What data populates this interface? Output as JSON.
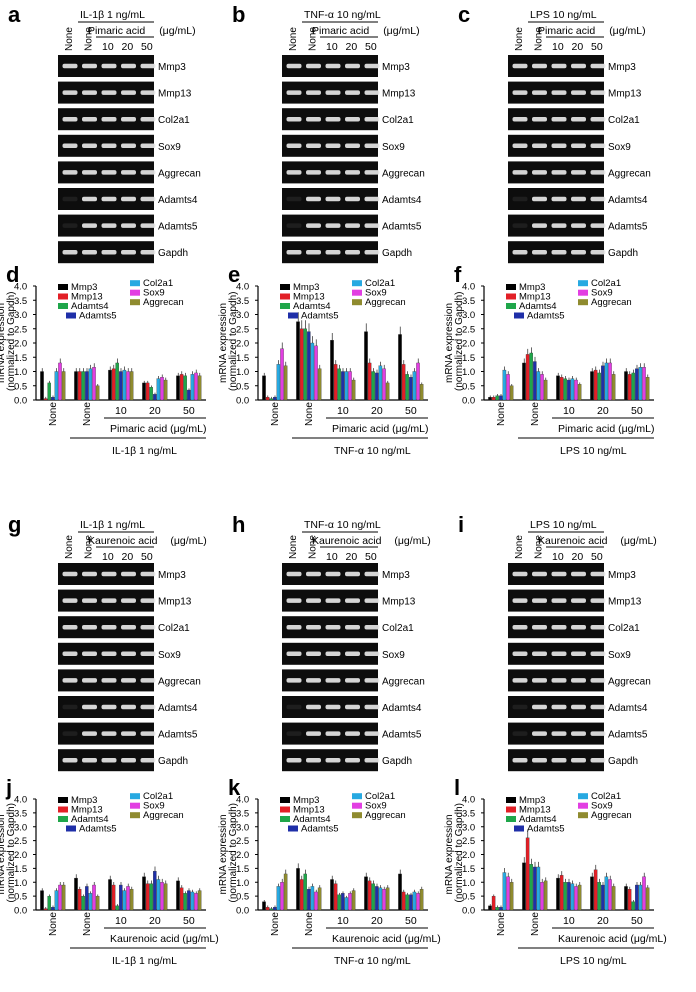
{
  "figure": {
    "gel_panels": [
      {
        "letter": "a",
        "treatment": "IL-1β 1 ng/mL",
        "compound": "Pimaric acid",
        "unit": "(μg/mL)",
        "none": "None",
        "doses": [
          "10",
          "20",
          "50"
        ]
      },
      {
        "letter": "b",
        "treatment": "TNF-α 10 ng/mL",
        "compound": "Pimaric acid",
        "unit": "(μg/mL)",
        "none": "None",
        "doses": [
          "10",
          "20",
          "50"
        ]
      },
      {
        "letter": "c",
        "treatment": "LPS 10 ng/mL",
        "compound": "Pimaric acid",
        "unit": "(μg/mL)",
        "none": "None",
        "doses": [
          "10",
          "20",
          "50"
        ]
      },
      {
        "letter": "g",
        "treatment": "IL-1β 1 ng/mL",
        "compound": "Kaurenoic acid",
        "unit": "(μg/mL)",
        "none": "None",
        "doses": [
          "10",
          "20",
          "50"
        ]
      },
      {
        "letter": "h",
        "treatment": "TNF-α 10 ng/mL",
        "compound": "Kaurenoic acid",
        "unit": "(μg/mL)",
        "none": "None",
        "doses": [
          "10",
          "20",
          "50"
        ]
      },
      {
        "letter": "i",
        "treatment": "LPS 10 ng/mL",
        "compound": "Kaurenoic acid",
        "unit": "(μg/mL)",
        "none": "None",
        "doses": [
          "10",
          "20",
          "50"
        ]
      }
    ],
    "genes": [
      "Mmp3",
      "Mmp13",
      "Col2a1",
      "Sox9",
      "Aggrecan",
      "Adamts4",
      "Adamts5",
      "Gapdh"
    ],
    "bar_panels": [
      {
        "letter": "d",
        "compound": "Pimaric acid (μg/mL)",
        "treatment": "IL-1β 1 ng/mL"
      },
      {
        "letter": "e",
        "compound": "Pimaric acid (μg/mL)",
        "treatment": "TNF-α 10 ng/mL"
      },
      {
        "letter": "f",
        "compound": "Pimaric acid (μg/mL)",
        "treatment": "LPS 10 ng/mL"
      },
      {
        "letter": "j",
        "compound": "Kaurenoic acid (μg/mL)",
        "treatment": "IL-1β 1 ng/mL"
      },
      {
        "letter": "k",
        "compound": "Kaurenoic acid (μg/mL)",
        "treatment": "TNF-α 10 ng/mL"
      },
      {
        "letter": "l",
        "compound": "Kaurenoic acid (μg/mL)",
        "treatment": "LPS 10 ng/mL"
      }
    ],
    "ylabel_line1": "mRNA expression",
    "ylabel_line2": "(normalized to Gapdh)",
    "none_label": "None",
    "dose_labels": [
      "10",
      "20",
      "50"
    ]
  },
  "legend": [
    "Mmp3",
    "Mmp13",
    "Adamts4",
    "Adamts5",
    "Col2a1",
    "Sox9",
    "Aggrecan"
  ],
  "colors": {
    "Mmp3": "#000000",
    "Mmp13": "#e21f26",
    "Adamts4": "#1fa64a",
    "Adamts5": "#1f2fa8",
    "Col2a1": "#27a9e1",
    "Sox9": "#e23ee2",
    "Aggrecan": "#8f8b2f"
  },
  "chart_data": [
    {
      "panel": "d",
      "type": "bar",
      "ylim": [
        0,
        4
      ],
      "yticks": [
        "0.0",
        "0.5",
        "1.0",
        "1.5",
        "2.0",
        "2.5",
        "3.0",
        "3.5",
        "4.0"
      ],
      "groups": [
        "None",
        "None",
        "10",
        "20",
        "50"
      ],
      "series": [
        {
          "name": "Mmp3",
          "values": [
            1.0,
            1.0,
            1.05,
            0.6,
            0.85
          ]
        },
        {
          "name": "Mmp13",
          "values": [
            0.05,
            1.0,
            1.1,
            0.6,
            0.9
          ]
        },
        {
          "name": "Adamts4",
          "values": [
            0.6,
            1.0,
            1.3,
            0.45,
            0.85
          ]
        },
        {
          "name": "Adamts5",
          "values": [
            0.1,
            1.0,
            1.0,
            0.2,
            0.35
          ]
        },
        {
          "name": "Col2a1",
          "values": [
            1.0,
            1.1,
            1.05,
            0.75,
            0.9
          ]
        },
        {
          "name": "Sox9",
          "values": [
            1.3,
            1.15,
            1.0,
            0.8,
            0.95
          ]
        },
        {
          "name": "Aggrecan",
          "values": [
            1.0,
            0.5,
            1.0,
            0.7,
            0.85
          ]
        }
      ]
    },
    {
      "panel": "e",
      "type": "bar",
      "ylim": [
        0,
        4
      ],
      "yticks": [
        "0.0",
        "0.5",
        "1.0",
        "1.5",
        "2.0",
        "2.5",
        "3.0",
        "3.5",
        "4.0"
      ],
      "groups": [
        "None",
        "None",
        "10",
        "20",
        "50"
      ],
      "series": [
        {
          "name": "Mmp3",
          "values": [
            0.85,
            2.75,
            2.1,
            2.4,
            2.3
          ]
        },
        {
          "name": "Mmp13",
          "values": [
            0.1,
            2.5,
            1.25,
            1.3,
            1.25
          ]
        },
        {
          "name": "Adamts4",
          "values": [
            0.05,
            2.5,
            1.1,
            1.0,
            0.9
          ]
        },
        {
          "name": "Adamts5",
          "values": [
            0.1,
            2.4,
            1.0,
            0.95,
            0.8
          ]
        },
        {
          "name": "Col2a1",
          "values": [
            1.25,
            2.0,
            1.0,
            1.2,
            1.0
          ]
        },
        {
          "name": "Sox9",
          "values": [
            1.8,
            1.9,
            1.0,
            1.1,
            1.3
          ]
        },
        {
          "name": "Aggrecan",
          "values": [
            1.2,
            1.1,
            0.7,
            0.6,
            0.55
          ]
        }
      ]
    },
    {
      "panel": "f",
      "type": "bar",
      "ylim": [
        0,
        4
      ],
      "yticks": [
        "0.0",
        "0.5",
        "1.0",
        "1.5",
        "2.0",
        "2.5",
        "3.0",
        "3.5",
        "4.0"
      ],
      "groups": [
        "None",
        "None",
        "10",
        "20",
        "50"
      ],
      "series": [
        {
          "name": "Mmp3",
          "values": [
            0.1,
            1.3,
            0.85,
            1.0,
            1.0
          ]
        },
        {
          "name": "Mmp13",
          "values": [
            0.1,
            1.6,
            0.8,
            1.05,
            0.9
          ]
        },
        {
          "name": "Adamts4",
          "values": [
            0.15,
            1.65,
            0.75,
            0.95,
            0.95
          ]
        },
        {
          "name": "Adamts5",
          "values": [
            0.15,
            1.35,
            0.7,
            1.2,
            1.1
          ]
        },
        {
          "name": "Col2a1",
          "values": [
            1.05,
            1.0,
            0.75,
            1.3,
            1.15
          ]
        },
        {
          "name": "Sox9",
          "values": [
            0.9,
            0.9,
            0.7,
            1.3,
            1.15
          ]
        },
        {
          "name": "Aggrecan",
          "values": [
            0.5,
            0.7,
            0.55,
            0.9,
            0.8
          ]
        }
      ]
    },
    {
      "panel": "j",
      "type": "bar",
      "ylim": [
        0,
        4
      ],
      "yticks": [
        "0.0",
        "0.5",
        "1.0",
        "1.5",
        "2.0",
        "2.5",
        "3.0",
        "3.5",
        "4.0"
      ],
      "groups": [
        "None",
        "None",
        "10",
        "20",
        "50"
      ],
      "series": [
        {
          "name": "Mmp3",
          "values": [
            0.7,
            1.15,
            1.1,
            1.2,
            1.05
          ]
        },
        {
          "name": "Mmp13",
          "values": [
            0.05,
            0.75,
            0.9,
            0.95,
            0.8
          ]
        },
        {
          "name": "Adamts4",
          "values": [
            0.5,
            0.5,
            0.15,
            0.95,
            0.6
          ]
        },
        {
          "name": "Adamts5",
          "values": [
            0.1,
            0.85,
            0.9,
            1.4,
            0.7
          ]
        },
        {
          "name": "Col2a1",
          "values": [
            0.7,
            0.6,
            0.7,
            1.1,
            0.65
          ]
        },
        {
          "name": "Sox9",
          "values": [
            0.9,
            0.9,
            0.85,
            1.0,
            0.6
          ]
        },
        {
          "name": "Aggrecan",
          "values": [
            0.9,
            0.5,
            0.75,
            0.95,
            0.7
          ]
        }
      ]
    },
    {
      "panel": "k",
      "type": "bar",
      "ylim": [
        0,
        4
      ],
      "yticks": [
        "0.0",
        "0.5",
        "1.0",
        "1.5",
        "2.0",
        "2.5",
        "3.0",
        "3.5",
        "4.0"
      ],
      "groups": [
        "None",
        "None",
        "10",
        "20",
        "50"
      ],
      "series": [
        {
          "name": "Mmp3",
          "values": [
            0.3,
            1.5,
            1.1,
            1.2,
            1.3
          ]
        },
        {
          "name": "Mmp13",
          "values": [
            0.1,
            1.1,
            0.95,
            1.05,
            0.65
          ]
        },
        {
          "name": "Adamts4",
          "values": [
            0.05,
            1.3,
            0.55,
            0.95,
            0.55
          ]
        },
        {
          "name": "Adamts5",
          "values": [
            0.1,
            0.75,
            0.6,
            0.85,
            0.55
          ]
        },
        {
          "name": "Col2a1",
          "values": [
            0.85,
            0.85,
            0.45,
            0.8,
            0.65
          ]
        },
        {
          "name": "Sox9",
          "values": [
            1.0,
            0.65,
            0.6,
            0.75,
            0.6
          ]
        },
        {
          "name": "Aggrecan",
          "values": [
            1.3,
            0.8,
            0.7,
            0.8,
            0.75
          ]
        }
      ]
    },
    {
      "panel": "l",
      "type": "bar",
      "ylim": [
        0,
        4
      ],
      "yticks": [
        "0.0",
        "0.5",
        "1.0",
        "1.5",
        "2.0",
        "2.5",
        "3.0",
        "3.5",
        "4.0"
      ],
      "groups": [
        "None",
        "None",
        "10",
        "20",
        "50"
      ],
      "series": [
        {
          "name": "Mmp3",
          "values": [
            0.15,
            1.7,
            1.15,
            1.2,
            0.85
          ]
        },
        {
          "name": "Mmp13",
          "values": [
            0.5,
            2.6,
            1.25,
            1.45,
            0.75
          ]
        },
        {
          "name": "Adamts4",
          "values": [
            0.1,
            1.65,
            1.0,
            1.0,
            0.3
          ]
        },
        {
          "name": "Adamts5",
          "values": [
            0.1,
            1.55,
            1.0,
            0.9,
            0.9
          ]
        },
        {
          "name": "Col2a1",
          "values": [
            1.35,
            1.55,
            0.95,
            1.2,
            0.9
          ]
        },
        {
          "name": "Sox9",
          "values": [
            1.2,
            1.0,
            0.85,
            1.1,
            1.2
          ]
        },
        {
          "name": "Aggrecan",
          "values": [
            1.0,
            1.05,
            0.9,
            0.85,
            0.8
          ]
        }
      ]
    }
  ]
}
